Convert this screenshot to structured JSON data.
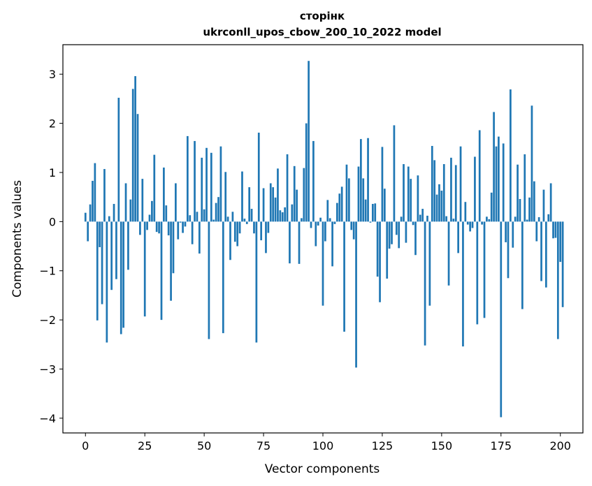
{
  "chart_data": {
    "type": "bar",
    "title": "сторінк",
    "subtitle": "ukrconll_upos_cbow_200_10_2022 model",
    "xlabel": "Vector components",
    "ylabel": "Components values",
    "xlim": [
      -9.5,
      209.5
    ],
    "ylim": [
      -4.3,
      3.6
    ],
    "x_ticks": [
      0,
      25,
      50,
      75,
      100,
      125,
      150,
      175,
      200
    ],
    "y_ticks": [
      -4,
      -3,
      -2,
      -1,
      0,
      1,
      2,
      3
    ],
    "x_tick_labels": [
      "0",
      "25",
      "50",
      "75",
      "100",
      "125",
      "150",
      "175",
      "200"
    ],
    "y_tick_labels": [
      "−4",
      "−3",
      "−2",
      "−1",
      "0",
      "1",
      "2",
      "3"
    ],
    "grid": false,
    "legend": "none",
    "bar_color": "#1f77b4",
    "values": [
      0.18,
      -0.4,
      0.35,
      0.83,
      1.19,
      -2.01,
      -0.52,
      -1.68,
      1.07,
      -2.46,
      0.11,
      -1.39,
      0.36,
      -1.17,
      2.52,
      -2.29,
      -2.16,
      0.78,
      -0.98,
      0.45,
      2.7,
      2.96,
      2.19,
      -0.27,
      0.87,
      -1.93,
      -0.17,
      0.14,
      0.42,
      1.36,
      -0.21,
      -0.24,
      -2.0,
      1.1,
      0.33,
      -0.28,
      -1.61,
      -1.05,
      0.78,
      -0.36,
      -0.02,
      -0.23,
      -0.1,
      1.74,
      0.13,
      -0.46,
      1.64,
      0.2,
      -0.65,
      1.3,
      0.25,
      1.5,
      -2.39,
      1.4,
      0.04,
      0.38,
      0.5,
      1.53,
      -2.27,
      1.01,
      0.1,
      -0.78,
      0.2,
      -0.41,
      -0.5,
      -0.24,
      1.02,
      0.06,
      -0.05,
      0.7,
      0.26,
      -0.24,
      -2.46,
      1.81,
      -0.38,
      0.68,
      -0.64,
      -0.23,
      0.78,
      0.7,
      0.49,
      1.08,
      0.23,
      0.19,
      0.29,
      1.37,
      -0.85,
      0.35,
      1.13,
      0.65,
      -0.86,
      0.07,
      1.09,
      2.0,
      3.27,
      -0.13,
      1.64,
      -0.5,
      -0.08,
      0.08,
      -1.71,
      -0.4,
      0.44,
      0.07,
      -0.91,
      -0.05,
      0.38,
      0.57,
      0.71,
      -2.24,
      1.16,
      0.88,
      -0.17,
      -0.36,
      -2.97,
      1.12,
      1.68,
      0.88,
      0.45,
      1.7,
      -0.02,
      0.36,
      0.37,
      -1.12,
      -1.64,
      1.52,
      0.67,
      -1.16,
      -0.55,
      -0.46,
      1.96,
      -0.27,
      -0.54,
      0.1,
      1.17,
      -0.43,
      1.12,
      0.87,
      -0.07,
      -0.68,
      0.94,
      0.14,
      0.26,
      -2.52,
      0.12,
      -1.71,
      1.54,
      1.25,
      0.55,
      0.76,
      0.63,
      1.17,
      0.11,
      -1.3,
      1.3,
      0.06,
      1.15,
      -0.64,
      1.53,
      -2.54,
      0.4,
      -0.06,
      -0.2,
      -0.13,
      1.32,
      -2.09,
      1.86,
      -0.06,
      -1.96,
      0.1,
      0.05,
      0.59,
      2.23,
      1.53,
      1.73,
      -3.98,
      1.59,
      -0.42,
      -1.15,
      2.69,
      -0.53,
      0.1,
      1.16,
      0.46,
      -1.78,
      1.37,
      0.04,
      0.49,
      2.36,
      0.82,
      -0.4,
      0.09,
      -1.21,
      0.65,
      -1.34,
      0.15,
      0.78,
      -0.34,
      -0.33,
      -2.39,
      -0.82,
      -1.74
    ]
  }
}
